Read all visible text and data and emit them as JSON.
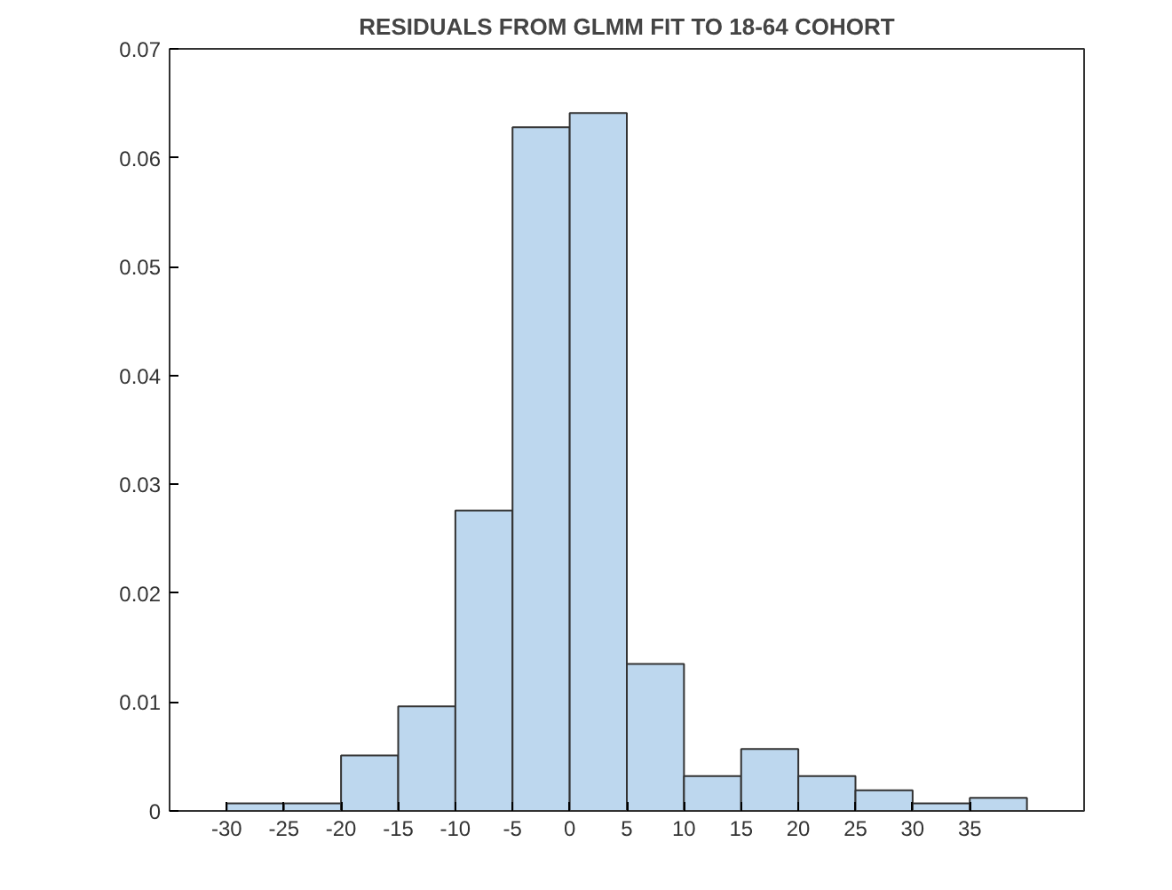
{
  "chart_data": {
    "type": "histogram",
    "title": "RESIDUALS FROM GLMM FIT TO 18-64 COHORT",
    "bins": [
      -30,
      -25,
      -20,
      -15,
      -10,
      -5,
      0,
      5,
      10,
      15,
      20,
      25,
      30,
      35,
      40
    ],
    "values": [
      0.0007,
      0.0007,
      0.0051,
      0.0096,
      0.0276,
      0.0628,
      0.0641,
      0.0135,
      0.0032,
      0.0057,
      0.0032,
      0.0019,
      0.0007,
      0.0012
    ],
    "color": "#bdd7ee",
    "xlim": [
      -35,
      45
    ],
    "xticks": [
      -30,
      -25,
      -20,
      -15,
      -10,
      -5,
      0,
      5,
      10,
      15,
      20,
      25,
      30,
      35
    ],
    "ylim": [
      0,
      0.07
    ],
    "yticks": [
      0,
      0.01,
      0.02,
      0.03,
      0.04,
      0.05,
      0.06,
      0.07
    ],
    "grid": false
  }
}
